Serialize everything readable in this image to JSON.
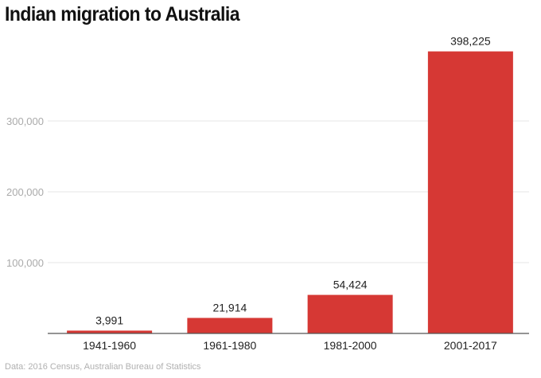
{
  "chart_data": {
    "type": "bar",
    "title": "Indian migration to Australia",
    "categories": [
      "1941-1960",
      "1961-1980",
      "1981-2000",
      "2001-2017"
    ],
    "values": [
      3991,
      21914,
      54424,
      398225
    ],
    "value_labels": [
      "3,991",
      "21,914",
      "54,424",
      "398,225"
    ],
    "yticks": [
      100000,
      200000,
      300000
    ],
    "ytick_labels": [
      "100,000",
      "200,000",
      "300,000"
    ],
    "ylim": [
      0,
      400000
    ],
    "xlabel": "",
    "ylabel": "",
    "grid": true,
    "bar_color": "#d63834",
    "source": "Data: 2016 Census, Australian Bureau of Statistics"
  }
}
